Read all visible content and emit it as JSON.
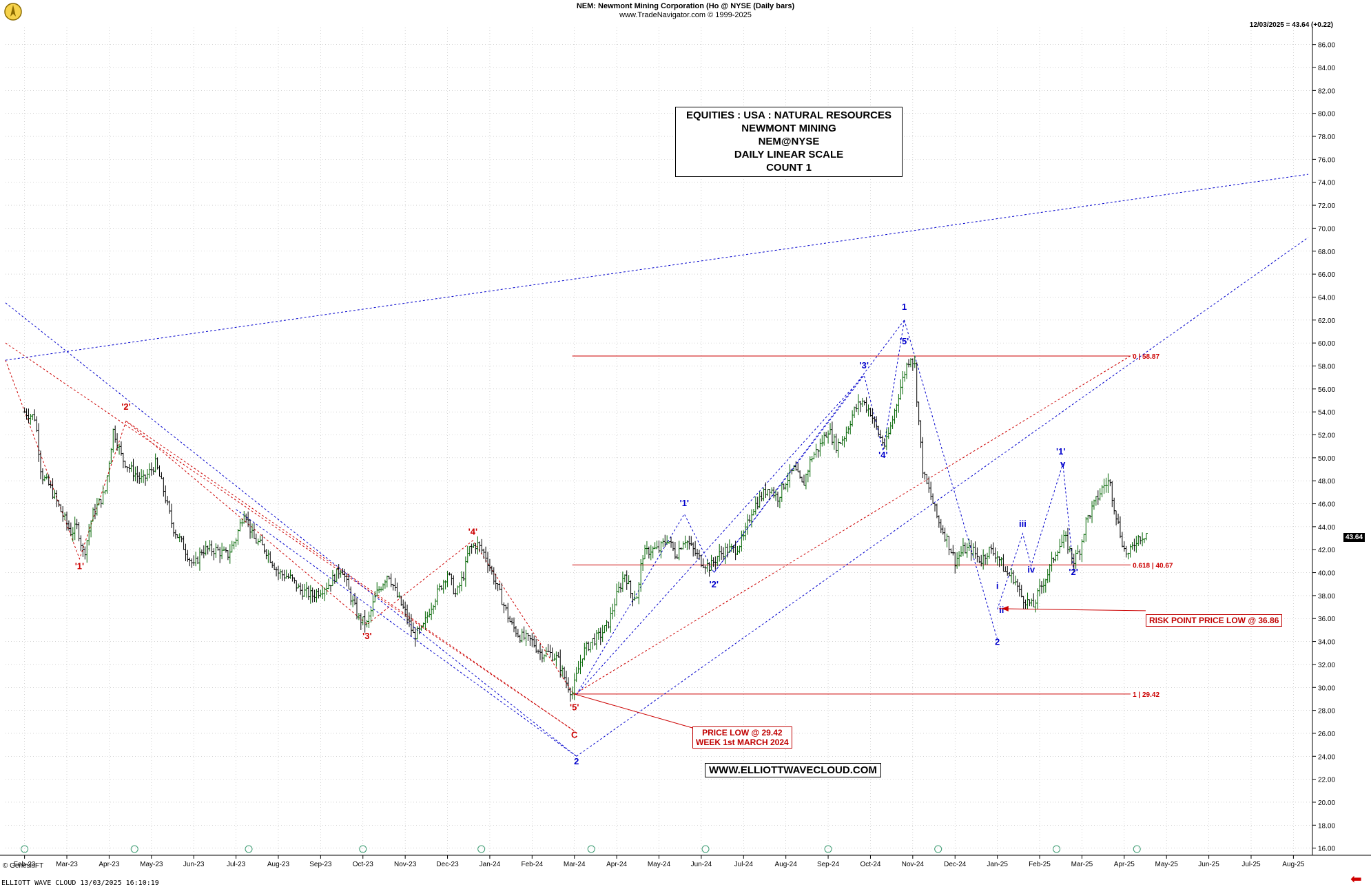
{
  "header": {
    "line1": "NEM:  Newmont Mining Corporation (Ho @ NYSE  (Daily bars)",
    "line2": "www.TradeNavigator.com © 1999-2025",
    "last_quote": "12/03/2025 = 43.64 (+0.22)"
  },
  "info_box": [
    "EQUITIES : USA : NATURAL RESOURCES",
    "NEWMONT MINING",
    "NEM@NYSE",
    "DAILY LINEAR SCALE",
    "COUNT 1"
  ],
  "website": "WWW.ELLIOTTWAVECLOUD.COM",
  "callouts": {
    "price_low": [
      "PRICE LOW @ 29.42",
      "WEEK 1st MARCH 2024"
    ],
    "risk_point": "RISK POINT PRICE LOW @ 36.86"
  },
  "last_price_tag": "43.64",
  "genesis": "© GenesisFT",
  "footer": "ELLIOTT WAVE CLOUD   13/03/2025 16:10:19",
  "colors": {
    "red": "#cc0000",
    "blue": "#0000cc",
    "bar_up": "#006400",
    "bar_down": "#000000"
  },
  "chart_data": {
    "type": "line",
    "title": "NEM:  Newmont Mining Corporation (Ho @ NYSE  (Daily bars)",
    "y_axis": {
      "side": "right",
      "ylim": [
        15.5,
        87
      ],
      "ticks": [
        16,
        18,
        20,
        22,
        24,
        26,
        28,
        30,
        32,
        34,
        36,
        38,
        40,
        42,
        44,
        46,
        48,
        50,
        52,
        54,
        56,
        58,
        60,
        62,
        64,
        66,
        68,
        70,
        72,
        74,
        76,
        78,
        80,
        82,
        84,
        86
      ]
    },
    "x_axis": {
      "labels": [
        "Feb-23",
        "Mar-23",
        "Apr-23",
        "May-23",
        "Jun-23",
        "Jul-23",
        "Aug-23",
        "Sep-23",
        "Oct-23",
        "Nov-23",
        "Dec-23",
        "Jan-24",
        "Feb-24",
        "Mar-24",
        "Apr-24",
        "May-24",
        "Jun-24",
        "Jul-24",
        "Aug-24",
        "Sep-24",
        "Oct-24",
        "Nov-24",
        "Dec-24",
        "Jan-25",
        "Feb-25",
        "Mar-25",
        "Apr-25",
        "May-25",
        "Jun-25",
        "Jul-25",
        "Aug-25"
      ],
      "month_index_range": [
        -0.45,
        30.45
      ]
    },
    "grid": true,
    "price_path": [
      [
        0,
        54
      ],
      [
        0.25,
        53.5
      ],
      [
        0.4,
        48.5
      ],
      [
        0.6,
        47.5
      ],
      [
        0.9,
        45
      ],
      [
        1.1,
        43.5
      ],
      [
        1.25,
        44
      ],
      [
        1.4,
        41.5
      ],
      [
        1.6,
        45
      ],
      [
        1.9,
        47
      ],
      [
        2.1,
        52.5
      ],
      [
        2.3,
        50
      ],
      [
        2.5,
        49
      ],
      [
        2.8,
        48
      ],
      [
        3.1,
        49.5
      ],
      [
        3.3,
        47
      ],
      [
        3.5,
        44
      ],
      [
        3.8,
        42
      ],
      [
        4.0,
        40.5
      ],
      [
        4.2,
        42
      ],
      [
        4.5,
        42
      ],
      [
        4.8,
        41.5
      ],
      [
        5.0,
        43
      ],
      [
        5.2,
        45.5
      ],
      [
        5.4,
        43
      ],
      [
        5.7,
        42
      ],
      [
        6.0,
        40
      ],
      [
        6.3,
        39.5
      ],
      [
        6.5,
        38.5
      ],
      [
        6.8,
        38
      ],
      [
        7.0,
        38.5
      ],
      [
        7.2,
        39
      ],
      [
        7.5,
        40.5
      ],
      [
        7.7,
        38
      ],
      [
        7.9,
        36
      ],
      [
        8.1,
        35.5
      ],
      [
        8.3,
        38
      ],
      [
        8.6,
        40
      ],
      [
        8.8,
        38
      ],
      [
        9.0,
        36.5
      ],
      [
        9.2,
        34.5
      ],
      [
        9.4,
        35
      ],
      [
        9.6,
        37
      ],
      [
        9.8,
        38.5
      ],
      [
        10.0,
        40
      ],
      [
        10.2,
        38
      ],
      [
        10.4,
        40
      ],
      [
        10.5,
        42
      ],
      [
        10.7,
        42.5
      ],
      [
        10.9,
        41.5
      ],
      [
        11.1,
        39.5
      ],
      [
        11.3,
        37.5
      ],
      [
        11.5,
        35.5
      ],
      [
        11.7,
        34.5
      ],
      [
        12.0,
        34
      ],
      [
        12.2,
        33
      ],
      [
        12.4,
        33
      ],
      [
        12.6,
        32.5
      ],
      [
        12.8,
        30.5
      ],
      [
        12.95,
        29.5
      ],
      [
        13.05,
        31
      ],
      [
        13.2,
        33
      ],
      [
        13.4,
        34
      ],
      [
        13.6,
        34.5
      ],
      [
        13.8,
        35.5
      ],
      [
        14.0,
        38
      ],
      [
        14.2,
        40
      ],
      [
        14.35,
        38
      ],
      [
        14.5,
        38
      ],
      [
        14.6,
        41.5
      ],
      [
        14.8,
        42
      ],
      [
        15.0,
        42
      ],
      [
        15.2,
        43
      ],
      [
        15.4,
        41.5
      ],
      [
        15.6,
        43
      ],
      [
        15.8,
        42
      ],
      [
        16.0,
        41
      ],
      [
        16.2,
        40.5
      ],
      [
        16.4,
        41.5
      ],
      [
        16.6,
        42
      ],
      [
        16.8,
        42
      ],
      [
        17.0,
        43
      ],
      [
        17.2,
        45.5
      ],
      [
        17.4,
        46.5
      ],
      [
        17.6,
        47.5
      ],
      [
        17.8,
        46.5
      ],
      [
        18.0,
        48
      ],
      [
        18.2,
        49
      ],
      [
        18.4,
        47.5
      ],
      [
        18.6,
        50
      ],
      [
        18.8,
        51
      ],
      [
        19.0,
        52.5
      ],
      [
        19.2,
        51
      ],
      [
        19.4,
        52
      ],
      [
        19.6,
        54
      ],
      [
        19.8,
        55
      ],
      [
        20.0,
        54
      ],
      [
        20.2,
        52
      ],
      [
        20.35,
        51
      ],
      [
        20.5,
        53
      ],
      [
        20.7,
        56
      ],
      [
        20.85,
        58
      ],
      [
        20.95,
        58.9
      ],
      [
        21.05,
        58
      ],
      [
        21.1,
        55
      ],
      [
        21.25,
        48.5
      ],
      [
        21.4,
        47
      ],
      [
        21.6,
        44.5
      ],
      [
        21.8,
        43
      ],
      [
        22.0,
        41
      ],
      [
        22.2,
        42
      ],
      [
        22.4,
        42
      ],
      [
        22.6,
        41
      ],
      [
        22.8,
        42
      ],
      [
        23.0,
        41.5
      ],
      [
        23.2,
        40
      ],
      [
        23.4,
        39.5
      ],
      [
        23.55,
        38
      ],
      [
        23.7,
        37.5
      ],
      [
        23.85,
        37
      ],
      [
        24.0,
        38.5
      ],
      [
        24.2,
        40
      ],
      [
        24.4,
        42
      ],
      [
        24.6,
        43
      ],
      [
        24.8,
        41
      ],
      [
        24.95,
        42
      ],
      [
        25.1,
        44.5
      ],
      [
        25.3,
        46
      ],
      [
        25.5,
        47.5
      ],
      [
        25.65,
        48
      ],
      [
        25.75,
        46
      ],
      [
        25.9,
        43.5
      ],
      [
        26.0,
        42
      ],
      [
        26.1,
        41.5
      ],
      [
        26.3,
        43
      ],
      [
        26.5,
        43.3
      ],
      [
        26.55,
        43.64
      ]
    ],
    "horizontal_levels": [
      {
        "value": 58.87,
        "label": "0 | 58.87"
      },
      {
        "value": 40.67,
        "label": "0.618 | 40.67"
      },
      {
        "value": 29.42,
        "label": "1 | 29.42"
      }
    ],
    "annotations": [
      {
        "text": "'1'",
        "x": 1.3,
        "y": 40.3,
        "color": "red"
      },
      {
        "text": "'2'",
        "x": 2.4,
        "y": 54.2,
        "color": "red"
      },
      {
        "text": "'3'",
        "x": 8.1,
        "y": 34.2,
        "color": "red"
      },
      {
        "text": "'4'",
        "x": 10.6,
        "y": 43.3,
        "color": "red"
      },
      {
        "text": "'5'",
        "x": 13.0,
        "y": 28.0,
        "color": "red"
      },
      {
        "text": "C",
        "x": 13.0,
        "y": 25.6,
        "color": "red"
      },
      {
        "text": "2",
        "x": 13.05,
        "y": 23.3,
        "color": "blue"
      },
      {
        "text": "'1'",
        "x": 15.6,
        "y": 45.8,
        "color": "blue"
      },
      {
        "text": "'2'",
        "x": 16.3,
        "y": 38.7,
        "color": "blue"
      },
      {
        "text": "'3'",
        "x": 19.85,
        "y": 57.8,
        "color": "blue"
      },
      {
        "text": "'4'",
        "x": 20.3,
        "y": 50.0,
        "color": "blue"
      },
      {
        "text": "'5'",
        "x": 20.8,
        "y": 59.9,
        "color": "blue"
      },
      {
        "text": "1",
        "x": 20.8,
        "y": 62.9,
        "color": "blue"
      },
      {
        "text": "2",
        "x": 23.0,
        "y": 33.7,
        "color": "blue"
      },
      {
        "text": "i",
        "x": 23.0,
        "y": 38.6,
        "color": "blue"
      },
      {
        "text": "ii",
        "x": 23.1,
        "y": 36.5,
        "color": "blue"
      },
      {
        "text": "iii",
        "x": 23.6,
        "y": 44.0,
        "color": "blue"
      },
      {
        "text": "iv",
        "x": 23.8,
        "y": 40.0,
        "color": "blue"
      },
      {
        "text": "'1'",
        "x": 24.5,
        "y": 50.3,
        "color": "blue"
      },
      {
        "text": "v",
        "x": 24.55,
        "y": 49.2,
        "color": "blue"
      },
      {
        "text": "'2'",
        "x": 24.8,
        "y": 39.8,
        "color": "blue"
      }
    ],
    "trend_lines": [
      {
        "color": "red",
        "points": [
          [
            -0.45,
            58.5
          ],
          [
            1.3,
            41.2
          ],
          [
            2.4,
            53.2
          ],
          [
            8.1,
            35.5
          ],
          [
            10.6,
            42.8
          ],
          [
            13.0,
            29.3
          ]
        ]
      },
      {
        "color": "red",
        "points": [
          [
            -0.45,
            60
          ],
          [
            13.0,
            26.2
          ]
        ]
      },
      {
        "color": "red",
        "points": [
          [
            2.4,
            53.2
          ],
          [
            13.0,
            26.2
          ]
        ]
      },
      {
        "color": "red",
        "points": [
          [
            13.0,
            29.4
          ],
          [
            26.2,
            59.0
          ]
        ]
      },
      {
        "color": "blue",
        "points": [
          [
            -0.45,
            63.5
          ],
          [
            13.05,
            24
          ]
        ]
      },
      {
        "color": "blue",
        "points": [
          [
            5.0,
            45.5
          ],
          [
            13.05,
            24
          ]
        ]
      },
      {
        "color": "blue",
        "points": [
          [
            13.05,
            29.4
          ],
          [
            15.6,
            45.1
          ],
          [
            16.3,
            40
          ],
          [
            19.85,
            57.2
          ],
          [
            20.3,
            50.6
          ],
          [
            20.8,
            62
          ]
        ]
      },
      {
        "color": "blue",
        "points": [
          [
            13.05,
            29.4
          ],
          [
            19.85,
            57.2
          ]
        ]
      },
      {
        "color": "blue",
        "points": [
          [
            16.3,
            40
          ],
          [
            20.8,
            62
          ]
        ]
      },
      {
        "color": "blue",
        "points": [
          [
            20.8,
            62
          ],
          [
            23.0,
            34.2
          ]
        ]
      },
      {
        "color": "blue",
        "points": [
          [
            23.0,
            36.8
          ],
          [
            23.6,
            43.4
          ],
          [
            23.8,
            40.6
          ],
          [
            24.55,
            49.5
          ],
          [
            24.8,
            40.2
          ]
        ]
      },
      {
        "color": "blue",
        "points": [
          [
            13.05,
            24
          ],
          [
            30.35,
            69.2
          ]
        ]
      },
      {
        "color": "blue",
        "points": [
          [
            -0.45,
            58.5
          ],
          [
            30.35,
            74.7
          ]
        ]
      }
    ]
  }
}
